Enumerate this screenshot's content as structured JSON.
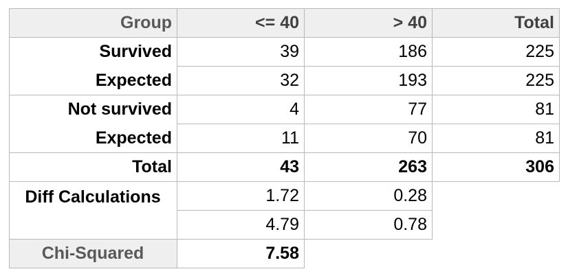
{
  "header": {
    "group": "Group",
    "col1": "<= 40",
    "col2": "> 40",
    "total": "Total"
  },
  "rows": [
    {
      "label": "Survived",
      "c1": "39",
      "c2": "186",
      "total": "225"
    },
    {
      "label": "Expected",
      "c1": "32",
      "c2": "193",
      "total": "225"
    },
    {
      "label": "Not survived",
      "c1": "4",
      "c2": "77",
      "total": "81"
    },
    {
      "label": "Expected",
      "c1": "11",
      "c2": "70",
      "total": "81"
    },
    {
      "label": "Total",
      "c1": "43",
      "c2": "263",
      "total": "306"
    }
  ],
  "diff": {
    "label": "Diff Calculations",
    "row1": {
      "c1": "1.72",
      "c2": "0.28"
    },
    "row2": {
      "c1": "4.79",
      "c2": "0.78"
    }
  },
  "chi": {
    "label": "Chi-Squared",
    "value": "7.58"
  }
}
